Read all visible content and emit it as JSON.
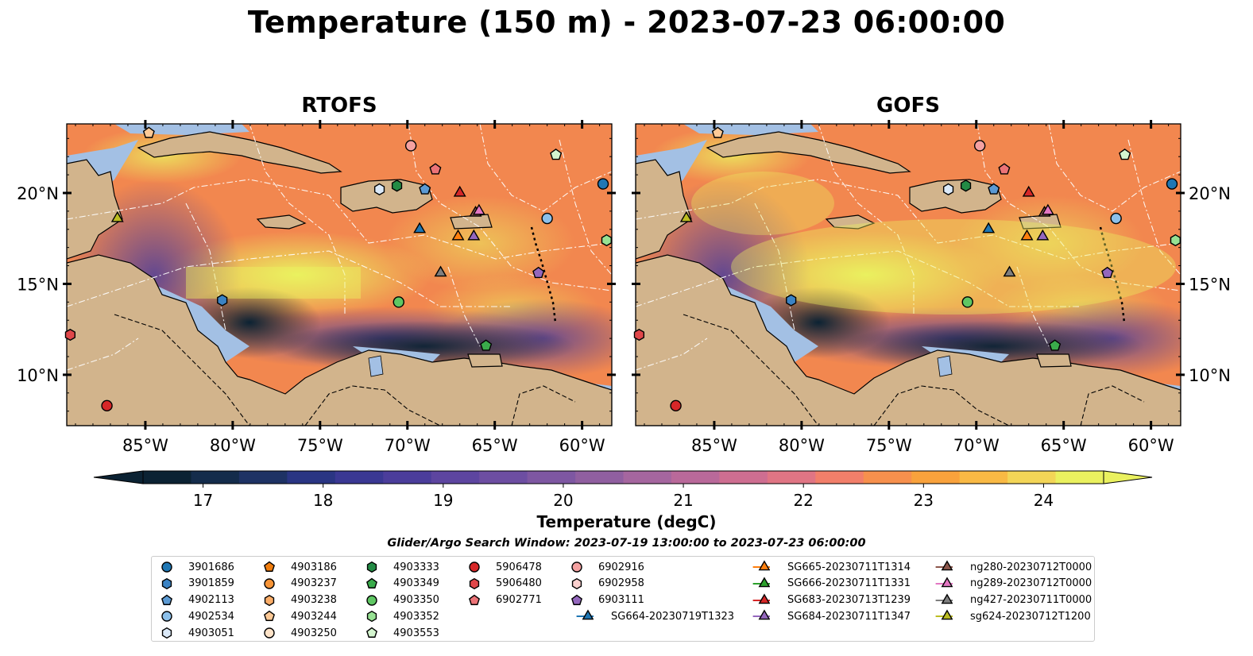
{
  "title": "Temperature (150 m) - 2023-07-23 06:00:00",
  "panels": [
    {
      "title": "RTOFS"
    },
    {
      "title": "GOFS"
    }
  ],
  "axes": {
    "lon_ticks": [
      "85°W",
      "80°W",
      "75°W",
      "70°W",
      "65°W",
      "60°W"
    ],
    "lat_ticks": [
      "20°N",
      "15°N",
      "10°N"
    ],
    "lon_range": [
      -89.5,
      -58.3
    ],
    "lat_range": [
      7.2,
      23.8
    ]
  },
  "colorbar": {
    "label": "Temperature (degC)",
    "ticks": [
      "17",
      "18",
      "19",
      "20",
      "21",
      "22",
      "23",
      "24"
    ],
    "range": [
      16.5,
      24.5
    ],
    "extend": "both",
    "colors": [
      "#0b2233",
      "#142c4b",
      "#1e3264",
      "#2a3583",
      "#3a3893",
      "#4b3d9b",
      "#5d45a0",
      "#6d4ea2",
      "#7e57a2",
      "#905fa0",
      "#a5669f",
      "#b9699a",
      "#ce6e91",
      "#e07584",
      "#f27f6a",
      "#f7904d",
      "#f9a23c",
      "#f9b944",
      "#f3d557",
      "#eaf15f"
    ]
  },
  "legend": {
    "title": "Glider/Argo Search Window: 2023-07-19 13:00:00 to 2023-07-23 06:00:00",
    "columns": [
      [
        {
          "label": "3901686",
          "marker": "circle",
          "color": "#1f77b4"
        },
        {
          "label": "3901859",
          "marker": "hexagon",
          "color": "#3b83c4"
        },
        {
          "label": "4902113",
          "marker": "pentagon",
          "color": "#5c9ad3"
        },
        {
          "label": "4902534",
          "marker": "circle",
          "color": "#8cc0ea"
        },
        {
          "label": "4903051",
          "marker": "hexagon",
          "color": "#dbe9f8"
        }
      ],
      [
        {
          "label": "4903186",
          "marker": "pentagon",
          "color": "#f07d0e"
        },
        {
          "label": "4903237",
          "marker": "circle",
          "color": "#f79437"
        },
        {
          "label": "4903238",
          "marker": "hexagon",
          "color": "#fbad68"
        },
        {
          "label": "4903244",
          "marker": "pentagon",
          "color": "#fdc996"
        },
        {
          "label": "4903250",
          "marker": "circle",
          "color": "#fee3c8"
        }
      ],
      [
        {
          "label": "4903333",
          "marker": "hexagon",
          "color": "#238b45"
        },
        {
          "label": "4903349",
          "marker": "pentagon",
          "color": "#3aab4b"
        },
        {
          "label": "4903350",
          "marker": "circle",
          "color": "#5fc763"
        },
        {
          "label": "4903352",
          "marker": "hexagon",
          "color": "#97e193"
        },
        {
          "label": "4903553",
          "marker": "pentagon",
          "color": "#d4f5cf"
        }
      ],
      [
        {
          "label": "5906478",
          "marker": "circle",
          "color": "#d62728"
        },
        {
          "label": "5906480",
          "marker": "hexagon",
          "color": "#e0474a"
        },
        {
          "label": "6902771",
          "marker": "pentagon",
          "color": "#ec7377"
        }
      ],
      [
        {
          "label": "6902916",
          "marker": "circle",
          "color": "#f4a1a1"
        },
        {
          "label": "6902958",
          "marker": "hexagon",
          "color": "#fbd0ce"
        },
        {
          "label": "6903111",
          "marker": "pentagon",
          "color": "#9467bd"
        },
        {
          "label": "SG664-20230719T1323",
          "marker": "triangle-line",
          "color": "#1f77b4"
        }
      ],
      [
        {
          "label": "SG665-20230711T1314",
          "marker": "triangle-line",
          "color": "#ff7f0e"
        },
        {
          "label": "SG666-20230711T1331",
          "marker": "triangle-line",
          "color": "#2ca02c"
        },
        {
          "label": "SG683-20230713T1239",
          "marker": "triangle-line",
          "color": "#d62728"
        },
        {
          "label": "SG684-20230711T1347",
          "marker": "triangle-line",
          "color": "#9467bd"
        }
      ],
      [
        {
          "label": "ng280-20230712T0000",
          "marker": "triangle-line",
          "color": "#8c564b"
        },
        {
          "label": "ng289-20230712T0000",
          "marker": "triangle-line",
          "color": "#e377c2"
        },
        {
          "label": "ng427-20230711T0000",
          "marker": "triangle-line",
          "color": "#7f7f7f"
        },
        {
          "label": "sg624-20230712T1200",
          "marker": "triangle-line",
          "color": "#bcbd22"
        }
      ]
    ]
  },
  "map_markers": [
    {
      "id": "3901686",
      "marker": "circle",
      "color": "#1f77b4",
      "lon": -58.8,
      "lat": 20.5
    },
    {
      "id": "3901859",
      "marker": "hexagon",
      "color": "#3b83c4",
      "lon": -80.6,
      "lat": 14.1
    },
    {
      "id": "4902113",
      "marker": "pentagon",
      "color": "#5c9ad3",
      "lon": -69.0,
      "lat": 20.2
    },
    {
      "id": "4902534",
      "marker": "circle",
      "color": "#8cc0ea",
      "lon": -62.0,
      "lat": 18.6
    },
    {
      "id": "4903051",
      "marker": "hexagon",
      "color": "#dbe9f8",
      "lon": -71.6,
      "lat": 20.2
    },
    {
      "id": "4903244",
      "marker": "pentagon",
      "color": "#fdc996",
      "lon": -84.8,
      "lat": 23.3
    },
    {
      "id": "4903333",
      "marker": "hexagon",
      "color": "#238b45",
      "lon": -70.6,
      "lat": 20.4
    },
    {
      "id": "4903349",
      "marker": "pentagon",
      "color": "#3aab4b",
      "lon": -65.5,
      "lat": 11.6
    },
    {
      "id": "4903350",
      "marker": "circle",
      "color": "#5fc763",
      "lon": -70.5,
      "lat": 14.0
    },
    {
      "id": "4903352",
      "marker": "hexagon",
      "color": "#97e193",
      "lon": -58.6,
      "lat": 17.4
    },
    {
      "id": "4903553",
      "marker": "pentagon",
      "color": "#d4f5cf",
      "lon": -61.5,
      "lat": 22.1
    },
    {
      "id": "5906478",
      "marker": "circle",
      "color": "#d62728",
      "lon": -87.2,
      "lat": 8.3
    },
    {
      "id": "5906480",
      "marker": "hexagon",
      "color": "#e0474a",
      "lon": -89.3,
      "lat": 12.2
    },
    {
      "id": "6902771",
      "marker": "pentagon",
      "color": "#ec7377",
      "lon": -68.4,
      "lat": 21.3
    },
    {
      "id": "6902916",
      "marker": "circle",
      "color": "#f4a1a1",
      "lon": -69.8,
      "lat": 22.6
    },
    {
      "id": "6903111",
      "marker": "pentagon",
      "color": "#9467bd",
      "lon": -62.5,
      "lat": 15.6
    },
    {
      "id": "SG664-20230719T1323",
      "marker": "triangle",
      "color": "#1f77b4",
      "lon": -69.3,
      "lat": 18.0
    },
    {
      "id": "SG665-20230711T1314",
      "marker": "triangle",
      "color": "#ff7f0e",
      "lon": -67.1,
      "lat": 17.6
    },
    {
      "id": "SG683-20230713T1239",
      "marker": "triangle",
      "color": "#d62728",
      "lon": -67.0,
      "lat": 20.0
    },
    {
      "id": "SG684-20230711T1347",
      "marker": "triangle",
      "color": "#9467bd",
      "lon": -66.2,
      "lat": 17.6
    },
    {
      "id": "ng280-20230712T0000",
      "marker": "triangle",
      "color": "#8c564b",
      "lon": -66.1,
      "lat": 18.9
    },
    {
      "id": "ng289-20230712T0000",
      "marker": "triangle",
      "color": "#e377c2",
      "lon": -65.9,
      "lat": 19.0
    },
    {
      "id": "ng427-20230711T0000",
      "marker": "triangle",
      "color": "#7f7f7f",
      "lon": -68.1,
      "lat": 15.6
    },
    {
      "id": "sg624-20230712T1200",
      "marker": "triangle",
      "color": "#bcbd22",
      "lon": -86.6,
      "lat": 18.6
    }
  ]
}
